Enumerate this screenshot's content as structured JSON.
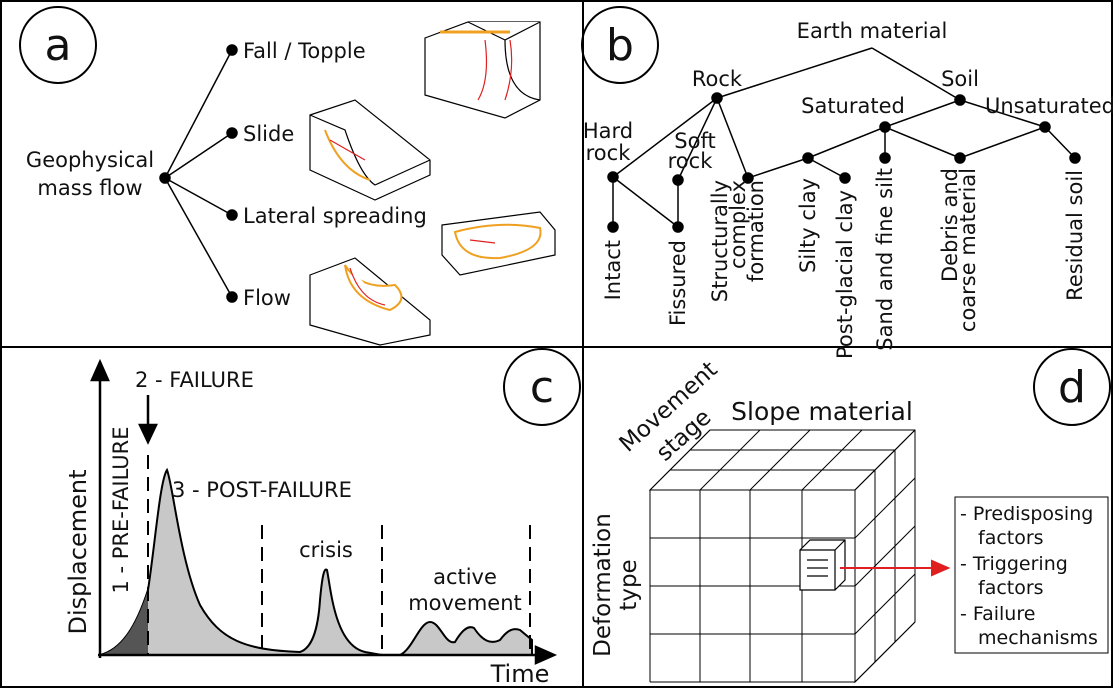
{
  "panel_a": {
    "label": "a",
    "root": [
      "Geophysical",
      "mass flow"
    ],
    "branches": [
      "Fall / Topple",
      "Slide",
      "Lateral spreading",
      "Flow"
    ]
  },
  "panel_b": {
    "label": "b",
    "root": "Earth material",
    "groups": [
      "Rock",
      "Soil"
    ],
    "subgroups": [
      [
        "Hard",
        "rock"
      ],
      [
        "Soft",
        "rock"
      ],
      [
        "Saturated"
      ],
      [
        "Unsaturated"
      ]
    ],
    "leaves": [
      [
        "Intact"
      ],
      [
        "Fissured"
      ],
      [
        "Structurally",
        "complex",
        "formation"
      ],
      [
        "Silty clay"
      ],
      [
        "Post-glacial clay"
      ],
      [
        "Sand and fine silt"
      ],
      [
        "Debris and",
        "coarse material"
      ],
      [
        "Residual soil"
      ]
    ]
  },
  "panel_c": {
    "label": "c",
    "y_axis": "Displacement",
    "x_axis": "Time",
    "stages": [
      "1 - PRE-FAILURE",
      "2 - FAILURE",
      "3 - POST-FAILURE"
    ],
    "crisis": "crisis",
    "active": [
      "active",
      "movement"
    ]
  },
  "panel_d": {
    "label": "d",
    "slope": "Slope material",
    "stage": [
      "Movement",
      "stage"
    ],
    "deformation": [
      "Deformation",
      "type"
    ],
    "factors": [
      [
        "- Predisposing",
        "factors"
      ],
      [
        "- Triggering",
        "factors"
      ],
      [
        "- Failure",
        "mechanisms"
      ]
    ]
  }
}
